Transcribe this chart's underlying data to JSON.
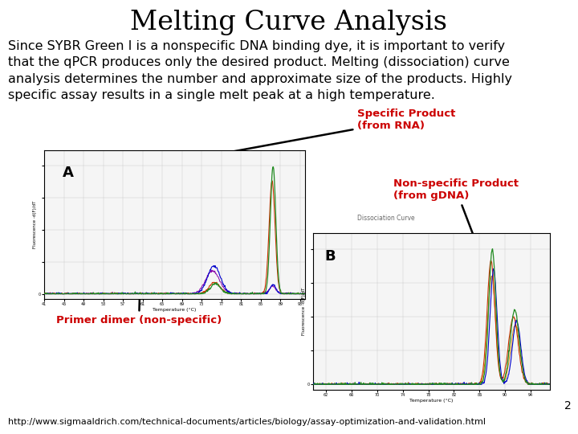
{
  "title": "Melting Curve Analysis",
  "title_fontsize": 24,
  "title_font": "serif",
  "body_text": "Since SYBR Green I is a nonspecific DNA binding dye, it is important to verify\nthat the qPCR produces only the desired product. Melting (dissociation) curve\nanalysis determines the number and approximate size of the products. Highly\nspecific assay results in a single melt peak at a high temperature.",
  "body_fontsize": 11.5,
  "footer_text": "http://www.sigmaaldrich.com/technical-documents/articles/biology/assay-optimization-and-validation.html",
  "footer_fontsize": 8,
  "annotation_specific": "Specific Product\n(from RNA)",
  "annotation_nonspecific": "Non-specific Product\n(from gDNA)",
  "annotation_primer": "Primer dimer (non-specific)",
  "annotation_dissociation": "Dissociation Curve",
  "label_A": "A",
  "label_B": "B",
  "page_number": "2",
  "bg_color": "#ffffff",
  "text_color": "#000000",
  "red_color": "#cc0000"
}
